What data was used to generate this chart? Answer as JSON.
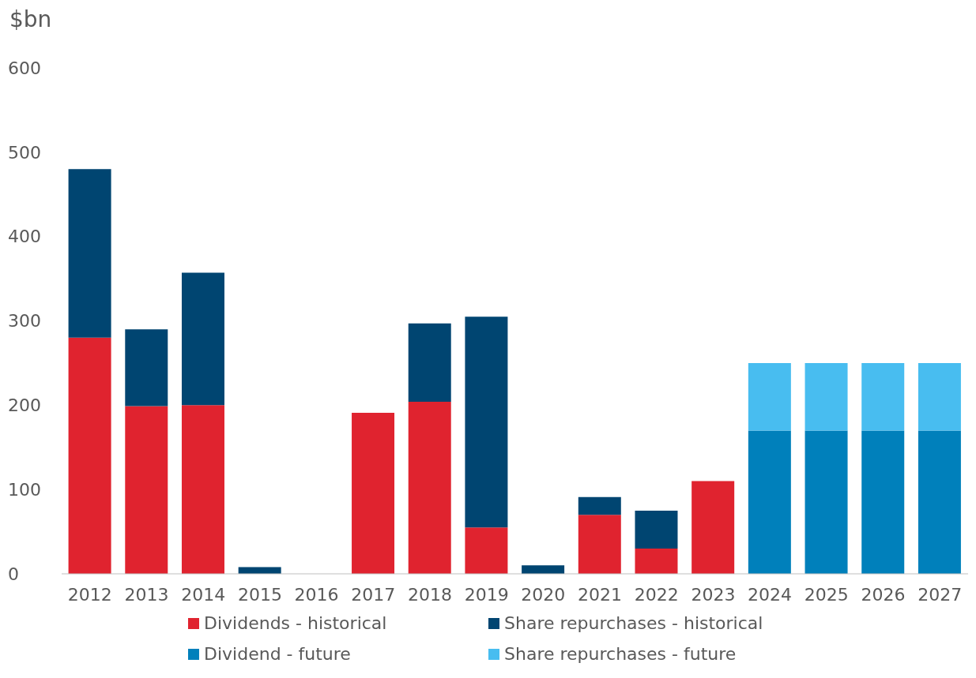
{
  "chart_data": {
    "type": "bar",
    "ylabel": "$bn",
    "stacked": true,
    "categories": [
      "2012",
      "2013",
      "2014",
      "2015",
      "2016",
      "2017",
      "2018",
      "2019",
      "2020",
      "2021",
      "2022",
      "2023",
      "2024",
      "2025",
      "2026",
      "2027"
    ],
    "series": [
      {
        "name": "Dividends - historical",
        "color": "#e0232f",
        "values": [
          280,
          199,
          200,
          null,
          null,
          191,
          204,
          55,
          null,
          70,
          30,
          110,
          null,
          null,
          null,
          null
        ]
      },
      {
        "name": "Share repurchases - historical",
        "color": "#004571",
        "values": [
          200,
          91,
          157,
          8,
          null,
          null,
          93,
          250,
          10,
          21,
          45,
          null,
          null,
          null,
          null,
          null
        ]
      },
      {
        "name": "Dividend - future",
        "color": "#0080bb",
        "values": [
          null,
          null,
          null,
          null,
          null,
          null,
          null,
          null,
          null,
          null,
          null,
          null,
          170,
          170,
          170,
          170
        ]
      },
      {
        "name": "Share repurchases - future",
        "color": "#48bdf0",
        "values": [
          null,
          null,
          null,
          null,
          null,
          null,
          null,
          null,
          null,
          null,
          null,
          null,
          80,
          80,
          80,
          80
        ]
      }
    ],
    "ylim": [
      0,
      600
    ],
    "yticks": [
      0,
      100,
      200,
      300,
      400,
      500,
      600
    ],
    "grid": false,
    "legend": "bottom"
  }
}
